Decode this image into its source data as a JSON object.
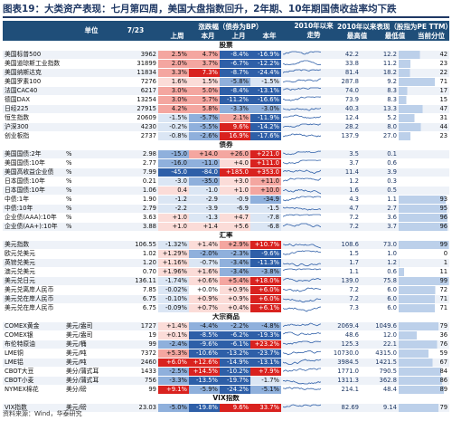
{
  "title": "图表19：大类资产表现：七月第四周，美国大盘指数回升，2年期、10年期国债收益率均下跌",
  "header": {
    "unit": "单位",
    "date": "7/23",
    "change_group": "涨跌幅（债券为BP）",
    "w1": "上周",
    "w2": "本月",
    "w3": "上月",
    "w4": "本年",
    "since2010": "2010年以来走势",
    "pe_group": "2010年以来表现（股指为PE TTM）",
    "max": "最高值",
    "min": "最低值",
    "cur": "当前分位"
  },
  "sections": [
    {
      "name": "股票",
      "rows": [
        {
          "name": "美国标普500",
          "unit": "",
          "price": "3962",
          "c": [
            "2.5%",
            "4.7%",
            "-8.4%",
            "-16.9%"
          ],
          "max": "42.2",
          "min": "12.2",
          "cur": "42"
        },
        {
          "name": "美国道琼斯工业指数",
          "unit": "",
          "price": "31899",
          "c": [
            "2.0%",
            "3.7%",
            "-6.7%",
            "-12.2%"
          ],
          "max": "33.8",
          "min": "11.2",
          "cur": "23"
        },
        {
          "name": "美国纳斯达克",
          "unit": "",
          "price": "11834",
          "c": [
            "3.3%",
            "7.3%",
            "-8.7%",
            "-24.4%"
          ],
          "max": "81.4",
          "min": "18.2",
          "cur": "22"
        },
        {
          "name": "美国罗素100",
          "unit": "",
          "price": "7276",
          "c": [
            "1.6%",
            "1.5%",
            "-5.8%",
            "-1.5%"
          ],
          "max": "287.8",
          "min": "9.2",
          "cur": "71"
        },
        {
          "name": "法国CAC40",
          "unit": "",
          "price": "6217",
          "c": [
            "3.0%",
            "5.0%",
            "-8.4%",
            "-13.1%"
          ],
          "max": "74.0",
          "min": "8.3",
          "cur": "17"
        },
        {
          "name": "德国DAX",
          "unit": "",
          "price": "13254",
          "c": [
            "3.0%",
            "5.7%",
            "-11.2%",
            "-16.6%"
          ],
          "max": "73.9",
          "min": "8.3",
          "cur": "15"
        },
        {
          "name": "日经225",
          "unit": "",
          "price": "27915",
          "c": [
            "4.2%",
            "5.8%",
            "-3.3%",
            "-3.0%"
          ],
          "max": "40.3",
          "min": "13.3",
          "cur": "47"
        },
        {
          "name": "恒生指数",
          "unit": "",
          "price": "20609",
          "c": [
            "-1.5%",
            "-5.7%",
            "2.1%",
            "-11.9%"
          ],
          "max": "12.4",
          "min": "5.2",
          "cur": "31"
        },
        {
          "name": "沪深300",
          "unit": "",
          "price": "4230",
          "c": [
            "-0.2%",
            "-5.5%",
            "9.6%",
            "-14.2%"
          ],
          "max": "28.2",
          "min": "8.0",
          "cur": "44"
        },
        {
          "name": "创业板指",
          "unit": "",
          "price": "2737",
          "c": [
            "-0.8%",
            "-2.6%",
            "16.9%",
            "-17.6%"
          ],
          "max": "137.9",
          "min": "27.0",
          "cur": "23"
        }
      ]
    },
    {
      "name": "债券",
      "rows": [
        {
          "name": "美国国债:2年",
          "unit": "%",
          "price": "2.98",
          "c": [
            "-15.0",
            "+14.0",
            "+26.0",
            "+221.0"
          ],
          "max": "3.5",
          "min": "0.1",
          "cur": ""
        },
        {
          "name": "美国国债:10年",
          "unit": "%",
          "price": "2.77",
          "c": [
            "-16.0",
            "-11.0",
            "+4.0",
            "+111.0"
          ],
          "max": "3.7",
          "min": "0.6",
          "cur": ""
        },
        {
          "name": "美国高收益企业债",
          "unit": "%",
          "price": "7.99",
          "c": [
            "-45.0",
            "-84.0",
            "+185.0",
            "+353.0"
          ],
          "max": "11.4",
          "min": "3.9",
          "cur": ""
        },
        {
          "name": "日本国债:10年",
          "unit": "%",
          "price": "0.21",
          "c": [
            "-3.0",
            "-35.0",
            "+3.0",
            "+11.0"
          ],
          "max": "1.2",
          "min": "0.3",
          "cur": ""
        },
        {
          "name": "日本国债:10年",
          "unit": "%",
          "price": "1.06",
          "c": [
            "0.4",
            "-1.0",
            "+1.0",
            "+10.0"
          ],
          "max": "1.6",
          "min": "0.5",
          "cur": ""
        },
        {
          "name": "中债:1年",
          "unit": "%",
          "price": "1.90",
          "c": [
            "-1.2",
            "-2.9",
            "-0.9",
            "-34.9"
          ],
          "max": "4.3",
          "min": "1.1",
          "cur": "93"
        },
        {
          "name": "中债:10年",
          "unit": "%",
          "price": "2.79",
          "c": [
            "-2.2",
            "-3.9",
            "-6.9",
            "-1.5"
          ],
          "max": "4.7",
          "min": "2.7",
          "cur": "95"
        },
        {
          "name": "企业债(AAA):10年",
          "unit": "%",
          "price": "3.63",
          "c": [
            "+1.0",
            "-1.3",
            "+4.7",
            "-7.8"
          ],
          "max": "7.2",
          "min": "3.6",
          "cur": "96"
        },
        {
          "name": "企业债(AA+):10年",
          "unit": "%",
          "price": "3.88",
          "c": [
            "+1.0",
            "+1.4",
            "+5.6",
            "-6.8"
          ],
          "max": "7.2",
          "min": "3.7",
          "cur": "96"
        }
      ]
    },
    {
      "name": "汇率",
      "rows": [
        {
          "name": "美元指数",
          "unit": "",
          "price": "106.55",
          "c": [
            "-1.32%",
            "+1.4%",
            "+2.9%",
            "+10.7%"
          ],
          "max": "108.6",
          "min": "73.0",
          "cur": "99"
        },
        {
          "name": "欧元兑美元",
          "unit": "",
          "price": "1.02",
          "c": [
            "+1.29%",
            "-2.0%",
            "-2.3%",
            "-9.6%"
          ],
          "max": "1.5",
          "min": "1.0",
          "cur": "0"
        },
        {
          "name": "英镑兑美元",
          "unit": "",
          "price": "1.20",
          "c": [
            "+1.16%",
            "-0.7%",
            "-3.4%",
            "-11.3%"
          ],
          "max": "1.7",
          "min": "1.2",
          "cur": "1"
        },
        {
          "name": "澳元兑美元",
          "unit": "",
          "price": "0.70",
          "c": [
            "+1.96%",
            "+1.6%",
            "-3.4%",
            "-3.8%"
          ],
          "max": "1.1",
          "min": "0.6",
          "cur": "11"
        },
        {
          "name": "美元兑日元",
          "unit": "",
          "price": "136.11",
          "c": [
            "-1.74%",
            "+0.6%",
            "+5.4%",
            "+18.0%"
          ],
          "max": "139.0",
          "min": "75.8",
          "cur": "99"
        },
        {
          "name": "美元兑离岸人民币",
          "unit": "",
          "price": "7.85",
          "c": [
            "-0.02%",
            "+0.0%",
            "+0.9%",
            "+6.0%"
          ],
          "max": "7.2",
          "min": "6.0",
          "cur": "72"
        },
        {
          "name": "美元兑在岸人民币",
          "unit": "",
          "price": "6.75",
          "c": [
            "-0.10%",
            "+0.9%",
            "+0.9%",
            "+6.0%"
          ],
          "max": "7.2",
          "min": "6.0",
          "cur": "71"
        },
        {
          "name": "美元兑在岸人民币",
          "unit": "",
          "price": "6.75",
          "c": [
            "-0.09%",
            "+0.7%",
            "+0.4%",
            "+6.1%"
          ],
          "max": "7.3",
          "min": "6.0",
          "cur": "71"
        }
      ]
    },
    {
      "name": "大宗商品",
      "rows": [
        {
          "name": "COMEX黄金",
          "unit": "美元/盎司",
          "price": "1727",
          "c": [
            "+1.4%",
            "-4.4%",
            "-2.2%",
            "-4.8%"
          ],
          "max": "2069.4",
          "min": "1049.6",
          "cur": "79"
        },
        {
          "name": "COMEX银",
          "unit": "美元/盎司",
          "price": "19",
          "c": [
            "+0.1%",
            "-8.5%",
            "-6.2%",
            "-19.3%"
          ],
          "max": "48.6",
          "min": "12.0",
          "cur": "36"
        },
        {
          "name": "布伦特原油",
          "unit": "美元/桶",
          "price": "99",
          "c": [
            "-2.4%",
            "-9.6%",
            "-6.1%",
            "+23.2%"
          ],
          "max": "125.3",
          "min": "22.1",
          "cur": "76"
        },
        {
          "name": "LME铜",
          "unit": "美元/吨",
          "price": "7372",
          "c": [
            "+5.3%",
            "-10.6%",
            "-13.2%",
            "-23.7%"
          ],
          "max": "10730.0",
          "min": "4315.0",
          "cur": "59"
        },
        {
          "name": "LME铝",
          "unit": "美元/吨",
          "price": "2460",
          "c": [
            "+6.0%",
            "+12.6%",
            "-14.9%",
            "-13.1%"
          ],
          "max": "3984.5",
          "min": "1421.5",
          "cur": "67"
        },
        {
          "name": "CBOT大豆",
          "unit": "美分/蒲式耳",
          "price": "1433",
          "c": [
            "-2.5%",
            "+14.5%",
            "-10.2%",
            "+7.9%"
          ],
          "max": "1771.0",
          "min": "790.5",
          "cur": "84"
        },
        {
          "name": "CBOT小麦",
          "unit": "美分/蒲式耳",
          "price": "756",
          "c": [
            "-3.3%",
            "-13.5%",
            "-19.7%",
            "-1.7%"
          ],
          "max": "1311.3",
          "min": "362.8",
          "cur": "86"
        },
        {
          "name": "NYMEX棉花",
          "unit": "美分/磅",
          "price": "99",
          "c": [
            "+9.1%",
            "-5.9%",
            "-24.2%",
            "-5.1%"
          ],
          "max": "214.1",
          "min": "48.4",
          "cur": "89"
        }
      ]
    },
    {
      "name": "VIX指数",
      "rows": [
        {
          "name": "VIX指数",
          "unit": "美元/磅",
          "price": "23.03",
          "c": [
            "-5.0%",
            "-19.8%",
            "9.6%",
            "33.7%"
          ],
          "max": "82.69",
          "min": "9.14",
          "cur": "79"
        }
      ]
    }
  ],
  "footer": "资料来源：Wind，华泰研究",
  "colors": {
    "header_bg": "#1f4e79",
    "red": "#d9221f",
    "light_red": "#f4a6a0",
    "blue": "#2e5fa8",
    "light_blue": "#bcd0ea"
  }
}
